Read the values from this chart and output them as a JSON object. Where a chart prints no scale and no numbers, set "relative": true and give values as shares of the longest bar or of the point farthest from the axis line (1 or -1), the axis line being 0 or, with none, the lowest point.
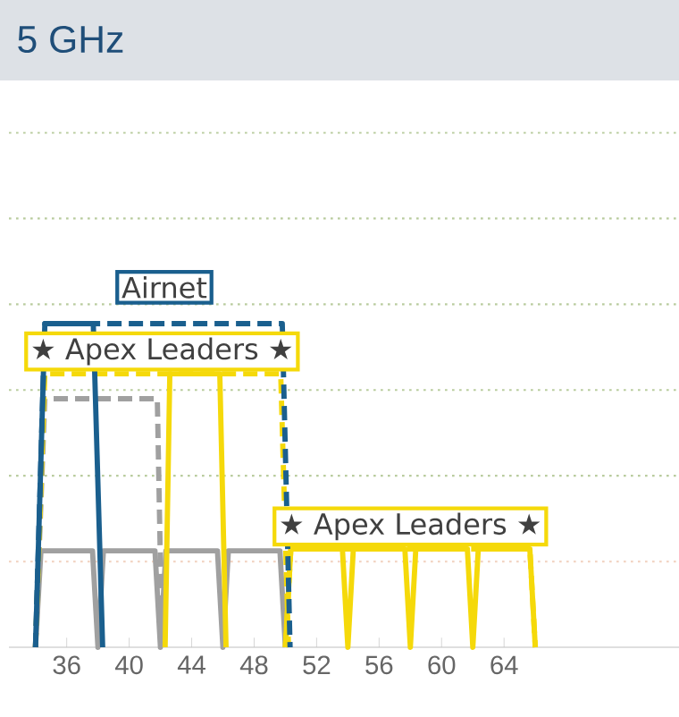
{
  "chart_data": {
    "type": "line",
    "title": "5 GHz",
    "relative": true,
    "xlim": [
      32.3,
      75.2
    ],
    "xticks": [
      36,
      40,
      44,
      48,
      52,
      56,
      60,
      64
    ],
    "ref_lines": [
      {
        "axis": "y",
        "value": 0.265,
        "color": "#f2d5c4",
        "line_style": "dotted"
      },
      {
        "axis": "y",
        "value": 0.53,
        "color": "#b9cc9e",
        "line_style": "dotted"
      },
      {
        "axis": "y",
        "value": 0.795,
        "color": "#b9cc9e",
        "line_style": "dotted"
      },
      {
        "axis": "y",
        "value": 1.06,
        "color": "#b9cc9e",
        "line_style": "dotted"
      },
      {
        "axis": "y",
        "value": 1.325,
        "color": "#b9cc9e",
        "line_style": "dotted"
      },
      {
        "axis": "y",
        "value": 1.59,
        "color": "#b9cc9e",
        "line_style": "dotted"
      }
    ],
    "tick_labels": "x",
    "marker": "none",
    "series": [
      {
        "color": "#a0a0a0",
        "line_style": "solid",
        "x": [
          34,
          34.35,
          37.65,
          38,
          38.35,
          41.65,
          42,
          42.35,
          45.65,
          46,
          46.35,
          49.65,
          50
        ],
        "values": [
          0,
          0.298,
          0.298,
          0,
          0.298,
          0.298,
          0,
          0.298,
          0.298,
          0,
          0.298,
          0.298,
          0
        ]
      },
      {
        "color": "#a0a0a0",
        "line_style": "dashed",
        "x": [
          34,
          34.6,
          41.8,
          42.1
        ],
        "values": [
          0,
          0.768,
          0.768,
          0
        ]
      },
      {
        "color": "#f5d90a",
        "line_style": "solid",
        "x": [
          42.3,
          42.6,
          45.8,
          46.2
        ],
        "values": [
          0,
          0.845,
          0.845,
          0
        ]
      },
      {
        "color": "#f5d90a",
        "line_style": "dashed",
        "x": [
          50,
          50.35,
          65.65,
          66
        ],
        "values": [
          0,
          0.304,
          0.304,
          0
        ]
      },
      {
        "name": "★ Apex Leaders ★",
        "color": "#f5d90a",
        "line_style": "solid",
        "x": [
          50,
          50.35,
          53.65,
          54,
          54.35,
          57.65,
          58,
          58.35,
          61.65,
          62,
          62.35,
          65.65,
          66
        ],
        "values": [
          0,
          0.304,
          0.304,
          0,
          0.304,
          0.304,
          0,
          0.304,
          0.304,
          0,
          0.304,
          0.304,
          0
        ]
      },
      {
        "name": "★ Apex Leaders ★",
        "color": "#f5d90a",
        "line_style": "dashed",
        "x": [
          34,
          34.6,
          49.7,
          50.2
        ],
        "values": [
          0,
          0.845,
          0.845,
          0
        ]
      },
      {
        "color": "#1a5f8e",
        "line_style": "dashed",
        "x": [
          34,
          34.6,
          49.8,
          50.3
        ],
        "values": [
          0,
          1,
          1,
          0
        ]
      },
      {
        "name": "Airnet",
        "color": "#1a5f8e",
        "line_style": "solid",
        "x": [
          34,
          34.6,
          37.7,
          38.3
        ],
        "values": [
          0,
          1,
          1,
          0
        ]
      }
    ]
  }
}
